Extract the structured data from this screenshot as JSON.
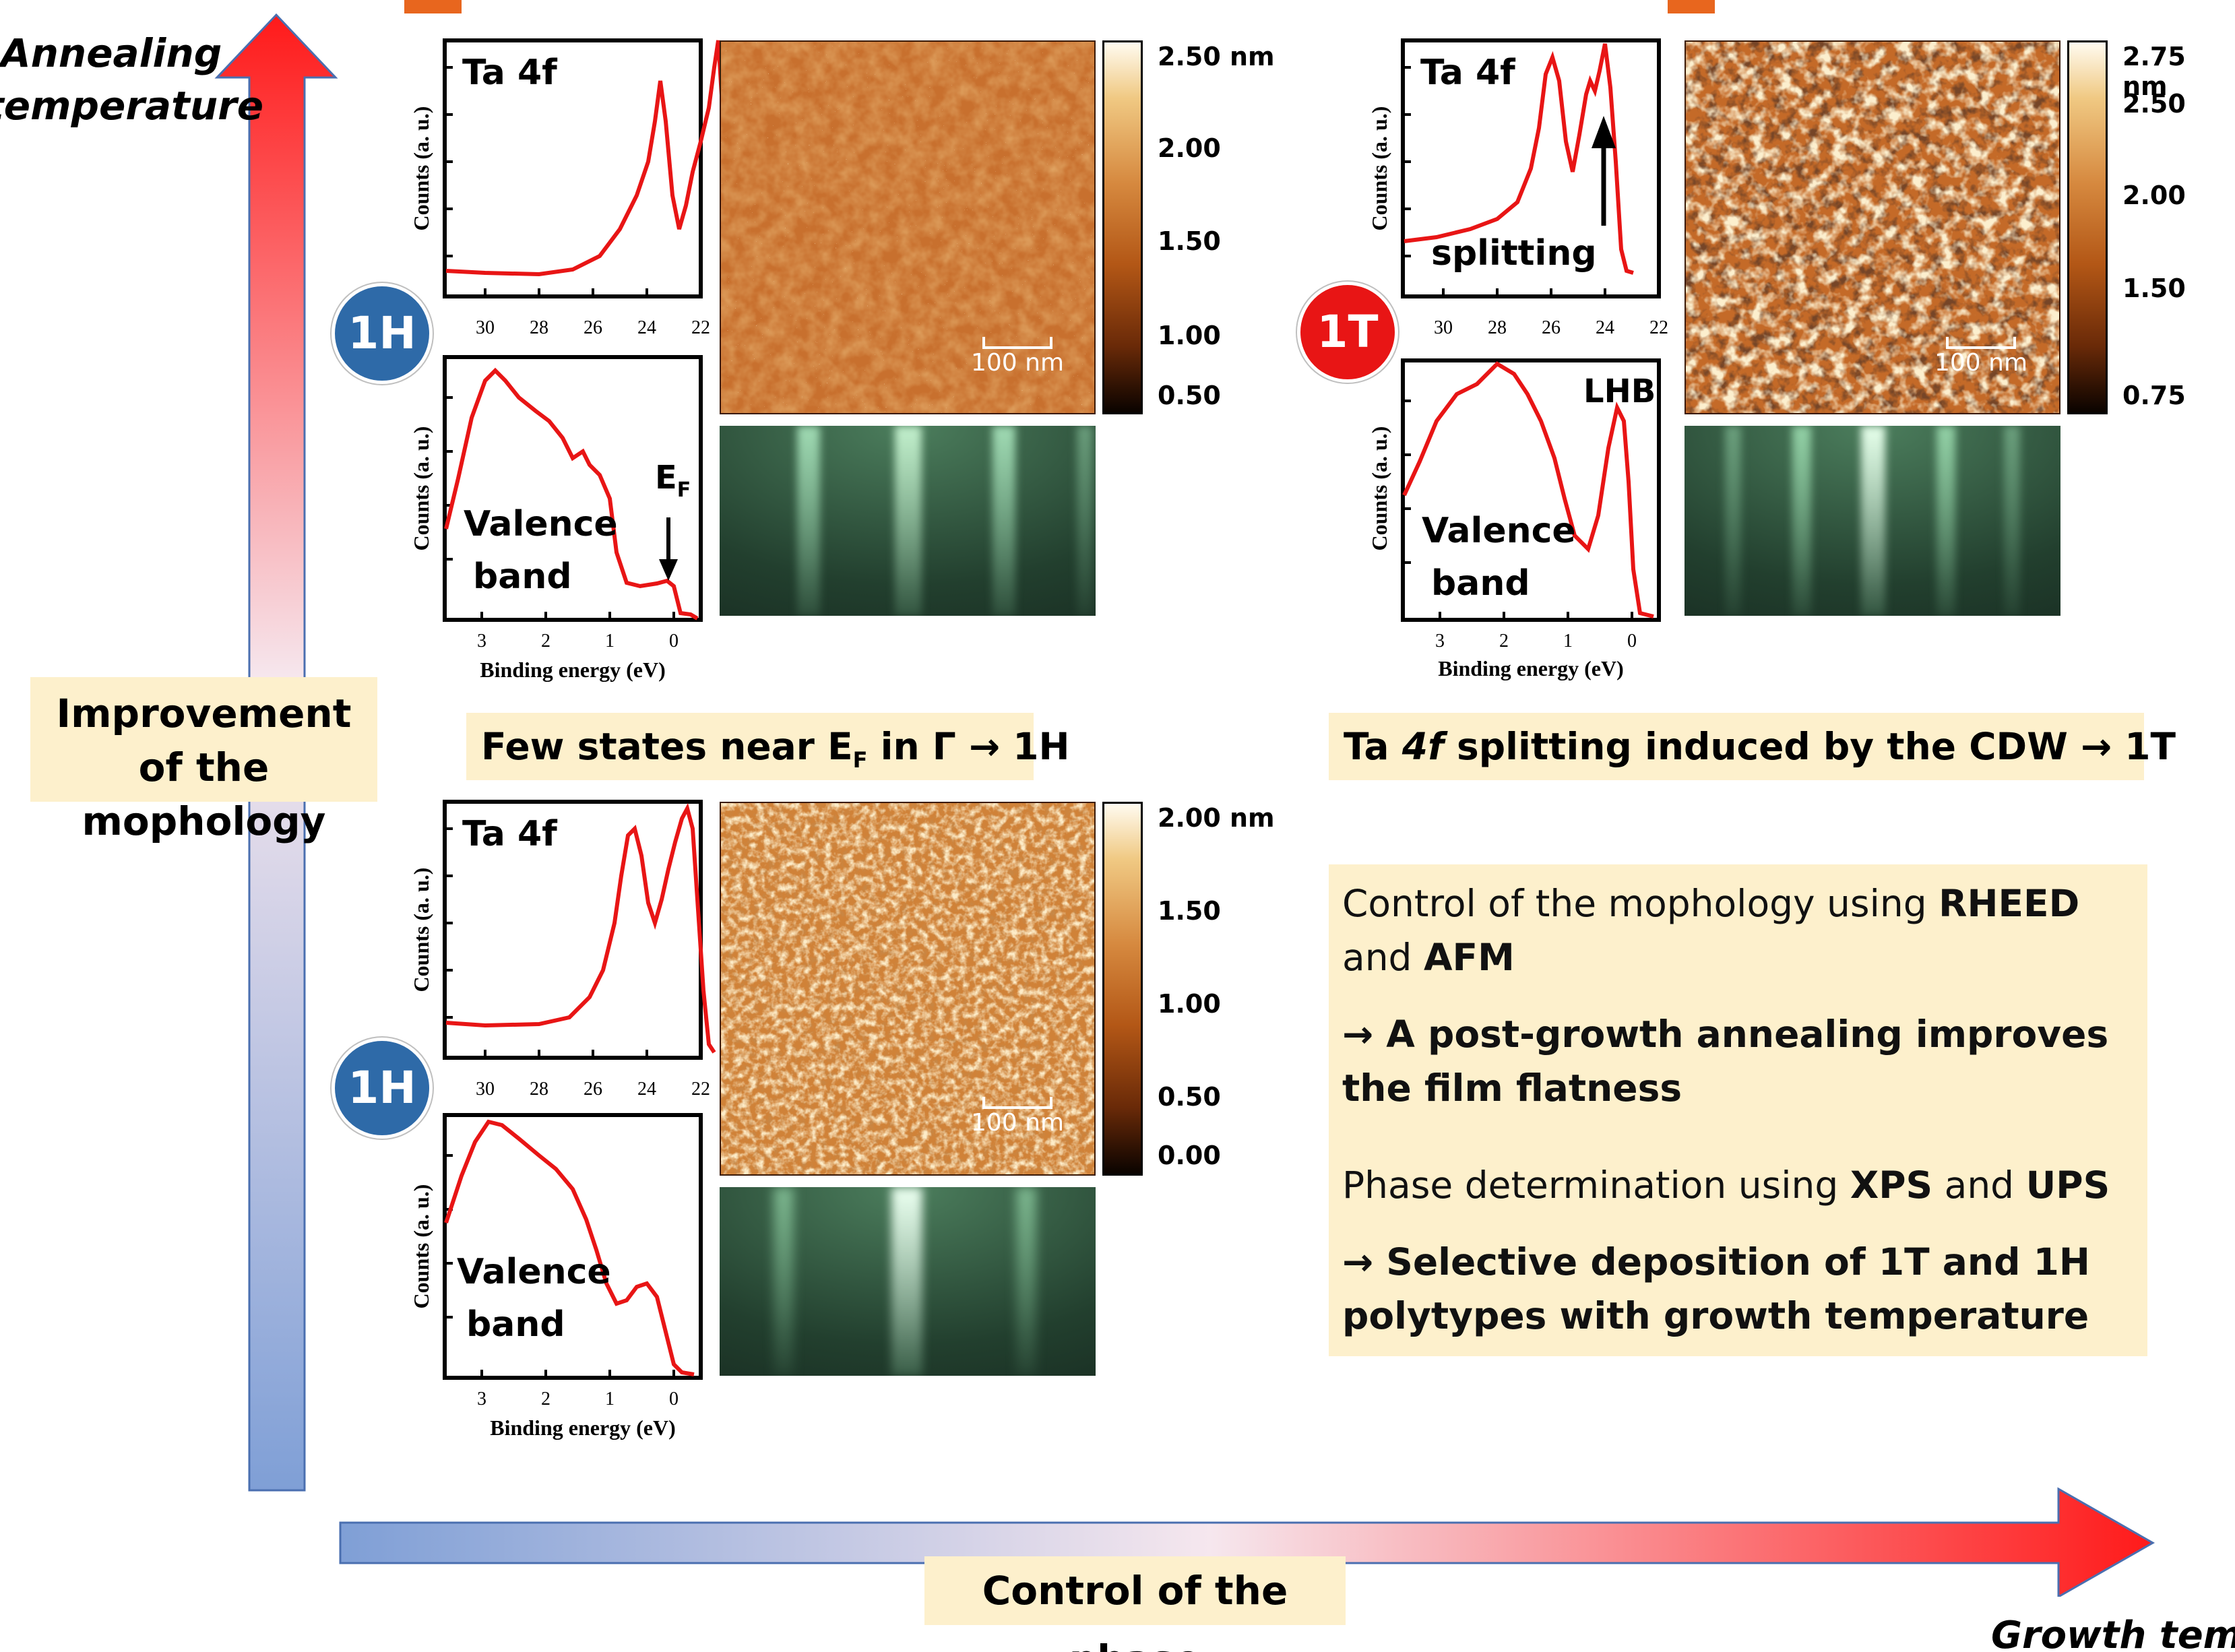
{
  "axes": {
    "y_arrow_label": "Annealing temperature",
    "y_arrow_label_line1": "Annealing",
    "y_arrow_label_line2": "temperature",
    "x_arrow_label": "Growth temp",
    "y_note": "Improvement of the mophology",
    "x_note": "Control of the phase"
  },
  "panels": {
    "top_left": {
      "badge": "1H",
      "xps_title": "Ta 4f",
      "xps_xticks": [
        "30",
        "28",
        "26",
        "24",
        "22"
      ],
      "ups_label_line1": "Valence",
      "ups_label_line2": "band",
      "ups_marker": "E",
      "ups_marker_sub": "F",
      "ups_xticks": [
        "3",
        "2",
        "1",
        "0"
      ],
      "ylabel": "Counts (a. u.)",
      "xlabel": "Binding energy (eV)",
      "afm_scale": "100 nm",
      "colorbar_ticks": [
        "2.50 nm",
        "2.00",
        "1.50",
        "1.00",
        "0.50"
      ]
    },
    "top_right": {
      "badge": "1T",
      "xps_title": "Ta 4f",
      "xps_annotation": "splitting",
      "xps_xticks": [
        "30",
        "28",
        "26",
        "24",
        "22"
      ],
      "ups_label_line1": "Valence",
      "ups_label_line2": "band",
      "ups_marker": "LHB",
      "ups_xticks": [
        "3",
        "2",
        "1",
        "0"
      ],
      "ylabel": "Counts (a. u.)",
      "xlabel": "Binding energy (eV)",
      "afm_scale": "100 nm",
      "colorbar_ticks": [
        "2.75 nm",
        "2.50",
        "2.00",
        "1.50",
        "0.75"
      ]
    },
    "bottom_left": {
      "badge": "1H",
      "xps_title": "Ta 4f",
      "xps_xticks": [
        "30",
        "28",
        "26",
        "24",
        "22"
      ],
      "ups_label_line1": "Valence",
      "ups_label_line2": "band",
      "ups_xticks": [
        "3",
        "2",
        "1",
        "0"
      ],
      "ylabel": "Counts (a. u.)",
      "xlabel": "Binding energy (eV)",
      "afm_scale": "100 nm",
      "colorbar_ticks": [
        "2.00 nm",
        "1.50",
        "1.00",
        "0.50",
        "0.00"
      ]
    }
  },
  "captions": {
    "left_pre": "Few states near E",
    "left_sub": "F",
    "left_post": " in Γ → 1H",
    "right_pre": "Ta ",
    "right_italic": "4f",
    "right_post": " splitting induced by the CDW → 1T"
  },
  "summary": {
    "p1_pre": "Control of the mophology using ",
    "p1_b1": "RHEED",
    "p1_mid": " and ",
    "p1_b2": "AFM",
    "p2": "→ A post-growth annealing improves the film flatness",
    "p3_pre": "Phase determination using ",
    "p3_b1": "XPS",
    "p3_mid": " and ",
    "p3_b2": "UPS",
    "p4": "→ Selective deposition of 1T and 1H polytypes with growth temperature"
  },
  "colors": {
    "arrow_red": "#ff1a1a",
    "arrow_blue": "#7f9fd6",
    "badge_1H": "#2e6aa8",
    "badge_1T": "#e81515",
    "note_bg": "#fdf0cc",
    "spectrum": "#e81515"
  }
}
